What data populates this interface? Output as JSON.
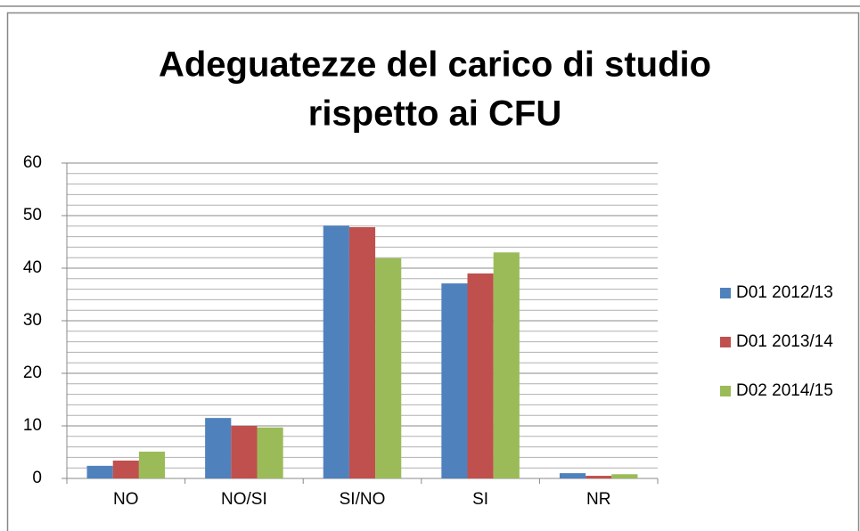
{
  "chart_data": {
    "type": "bar",
    "title": [
      "Adeguatezze del carico di studio",
      "rispetto ai CFU"
    ],
    "categories": [
      "NO",
      "NO/SI",
      "SI/NO",
      "SI",
      "NR"
    ],
    "series": [
      {
        "name": "D01 2012/13",
        "color": "#4f81bd",
        "values": [
          2.4,
          11.5,
          48.1,
          37.1,
          1.0
        ]
      },
      {
        "name": "D01 2013/14",
        "color": "#c0504d",
        "values": [
          3.4,
          10.0,
          47.8,
          39.0,
          0.5
        ]
      },
      {
        "name": "D02 2014/15",
        "color": "#9bbb59",
        "values": [
          5.1,
          9.7,
          41.9,
          43.0,
          0.8
        ]
      }
    ],
    "ylim": [
      0,
      60
    ],
    "yticks": [
      0,
      10,
      20,
      30,
      40,
      50,
      60
    ],
    "minor_yticks": [
      2,
      4,
      6,
      8,
      12,
      14,
      16,
      18,
      22,
      24,
      26,
      28,
      32,
      34,
      36,
      38,
      42,
      44,
      46,
      48,
      52,
      54,
      56,
      58
    ],
    "grid": true,
    "legend": "right"
  }
}
